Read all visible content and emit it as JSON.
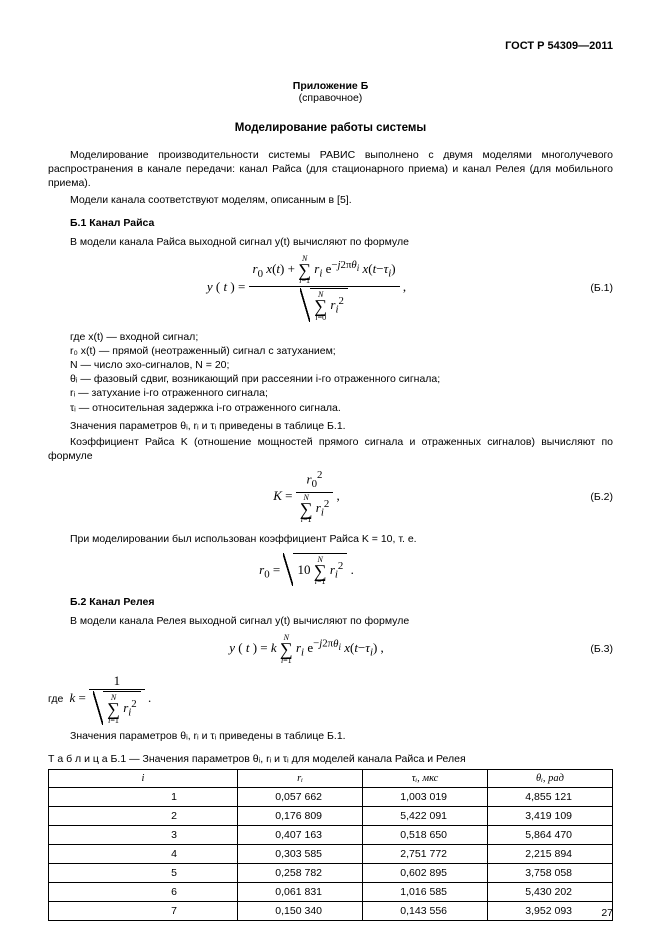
{
  "header": "ГОСТ Р 54309—2011",
  "appendix_title": "Приложение Б",
  "appendix_sub": "(справочное)",
  "title": "Моделирование работы системы",
  "intro1": "Моделирование производительности системы РАВИС выполнено с двумя моделями многолучевого распространения в канале передачи: канал Райса (для стационарного приема) и канал Релея (для мобильного приема).",
  "intro2": "Модели канала соответствуют моделям, описанным в [5].",
  "b1_head": "Б.1 Канал Райса",
  "b1_line": "В модели канала Райса выходной сигнал y(t) вычисляют по формуле",
  "eq1num": "(Б.1)",
  "defs_lead": "где x(t) — входной сигнал;",
  "defs": [
    "r₀ x(t) — прямой (неотраженный) сигнал с затуханием;",
    "N — число эхо-сигналов, N = 20;",
    "θᵢ — фазовый сдвиг, возникающий при рассеянии i-го отраженного сигнала;",
    "rᵢ — затухание i-го отраженного сигнала;",
    "τᵢ — относительная задержка i-го отраженного сигнала."
  ],
  "params_note": "Значения параметров θᵢ, rᵢ и τᵢ приведены в таблице Б.1.",
  "k_line": "Коэффициент Райса K (отношение мощностей прямого сигнала и отраженных сигналов) вычисляют по формуле",
  "eq2num": "(Б.2)",
  "k10_line": "При моделировании был использован коэффициент Райса K = 10, т. е.",
  "b2_head": "Б.2 Канал Релея",
  "b2_line": "В модели канала Релея выходной сигнал y(t) вычисляют по формуле",
  "eq3num": "(Б.3)",
  "where_k": "где",
  "params_note2": "Значения параметров θᵢ, rᵢ и τᵢ приведены в таблице Б.1.",
  "table_caption": "Т а б л и ц а  Б.1 — Значения параметров θᵢ, rᵢ и τᵢ для моделей канала Райса и Релея",
  "table": {
    "columns": [
      "i",
      "rᵢ",
      "τᵢ, мкс",
      "θᵢ, рад"
    ],
    "rows": [
      [
        "1",
        "0,057 662",
        "1,003 019",
        "4,855 121"
      ],
      [
        "2",
        "0,176 809",
        "5,422 091",
        "3,419 109"
      ],
      [
        "3",
        "0,407 163",
        "0,518 650",
        "5,864 470"
      ],
      [
        "4",
        "0,303 585",
        "2,751 772",
        "2,215 894"
      ],
      [
        "5",
        "0,258 782",
        "0,602 895",
        "3,758 058"
      ],
      [
        "6",
        "0,061 831",
        "1,016 585",
        "5,430 202"
      ],
      [
        "7",
        "0,150 340",
        "0,143 556",
        "3,952 093"
      ]
    ]
  },
  "pagenum": "27"
}
